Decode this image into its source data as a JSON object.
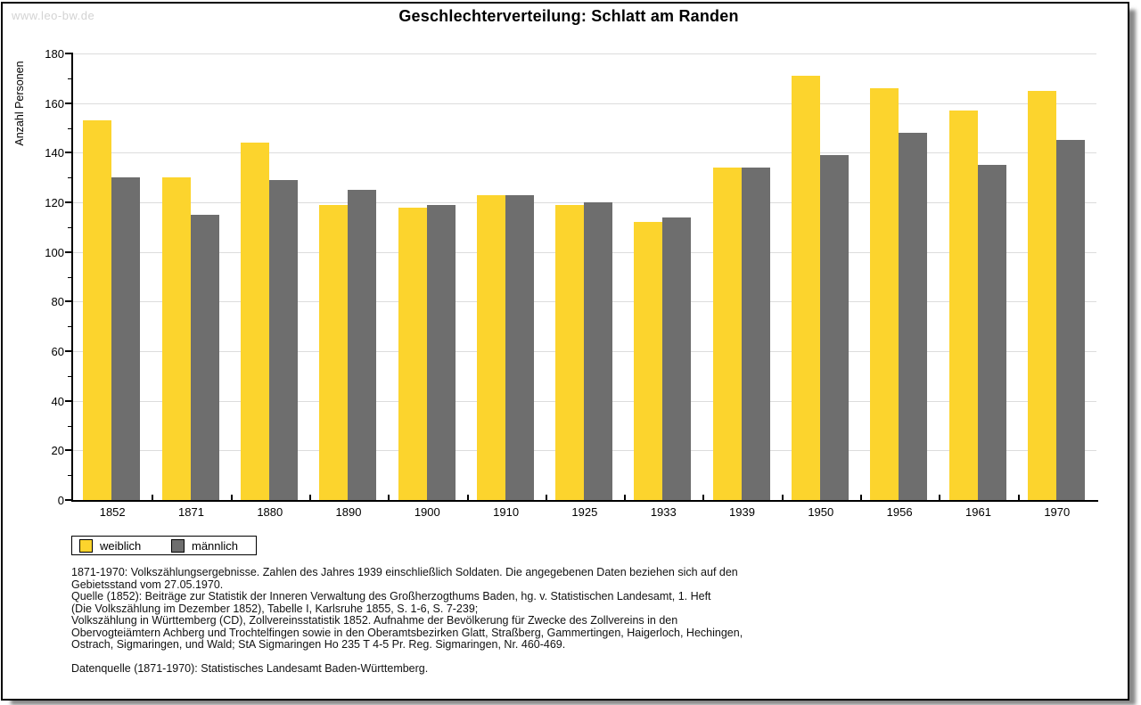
{
  "page": {
    "watermark": "www.leo-bw.de",
    "title": "Geschlechterverteilung: Schlatt am Randen"
  },
  "chart_data": {
    "type": "bar",
    "title": "Geschlechterverteilung: Schlatt am Randen",
    "xlabel": "",
    "ylabel": "Anzahl Personen",
    "ylim": [
      0,
      180
    ],
    "ytick_step": 20,
    "ytick_minor_step": 10,
    "grid": "horizontal",
    "legend_position": "bottom-left",
    "categories": [
      "1852",
      "1871",
      "1880",
      "1890",
      "1900",
      "1910",
      "1925",
      "1933",
      "1939",
      "1950",
      "1956",
      "1961",
      "1970"
    ],
    "series": [
      {
        "name": "weiblich",
        "color": "#FCD42D",
        "values": [
          153,
          130,
          144,
          119,
          118,
          123,
          119,
          112,
          134,
          171,
          166,
          157,
          165
        ]
      },
      {
        "name": "männlich",
        "color": "#6E6E6E",
        "values": [
          130,
          115,
          129,
          125,
          119,
          123,
          120,
          114,
          134,
          139,
          148,
          135,
          145
        ]
      }
    ]
  },
  "colors": {
    "gridline": "#dcdcdc",
    "axis": "#000000",
    "watermark": "#d3d3d3"
  },
  "footer": {
    "lines": [
      "1871-1970: Volkszählungsergebnisse. Zahlen des Jahres 1939 einschließlich Soldaten. Die angegebenen Daten beziehen sich auf den",
      "Gebietsstand vom 27.05.1970.",
      "Quelle (1852): Beiträge zur Statistik der Inneren Verwaltung des Großherzogthums Baden, hg. v. Statistischen Landesamt, 1. Heft",
      "(Die Volkszählung im Dezember 1852), Tabelle I, Karlsruhe 1855, S. 1-6, S. 7-239;",
      "Volkszählung in Württemberg (CD), Zollvereinsstatistik 1852. Aufnahme der Bevölkerung für Zwecke des Zollvereins in den",
      "Obervogteiämtern Achberg und Trochtelfingen sowie in den Oberamtsbezirken Glatt, Straßberg, Gammertingen, Haigerloch, Hechingen,",
      "Ostrach, Sigmaringen, und Wald; StA Sigmaringen Ho 235 T 4-5 Pr. Reg. Sigmaringen, Nr. 460-469."
    ],
    "datasource": "Datenquelle (1871-1970): Statistisches Landesamt Baden-Württemberg."
  }
}
